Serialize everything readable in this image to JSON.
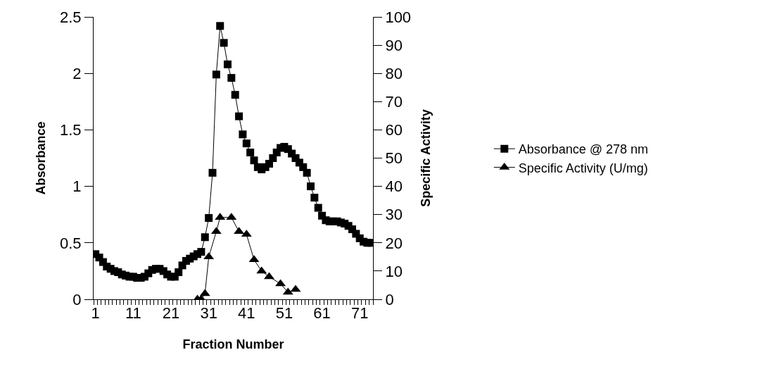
{
  "chart_data": {
    "type": "line",
    "xlabel": "Fraction Number",
    "ylabel": "Absorbance",
    "y2label": "Specific Activity",
    "categories": [
      "1",
      null,
      null,
      null,
      null,
      null,
      null,
      null,
      null,
      null,
      "11",
      null,
      null,
      null,
      null,
      null,
      null,
      null,
      null,
      null,
      "21",
      null,
      null,
      null,
      null,
      null,
      null,
      null,
      null,
      null,
      "31",
      null,
      null,
      null,
      null,
      null,
      null,
      null,
      null,
      null,
      "41",
      null,
      null,
      null,
      null,
      null,
      null,
      null,
      null,
      null,
      "51",
      null,
      null,
      null,
      null,
      null,
      null,
      null,
      null,
      null,
      "61",
      null,
      null,
      null,
      null,
      null,
      null,
      null,
      null,
      null,
      "71",
      null,
      null,
      null
    ],
    "series": [
      {
        "name": "Absorbance @ 278 nm",
        "color": "#000000",
        "marker": "square",
        "values": [
          0.4,
          0.37,
          0.33,
          0.29,
          0.27,
          0.25,
          0.24,
          0.22,
          0.21,
          0.2,
          0.2,
          0.19,
          0.19,
          0.2,
          0.23,
          0.26,
          0.27,
          0.27,
          0.25,
          0.22,
          0.2,
          0.2,
          0.24,
          0.3,
          0.34,
          0.36,
          0.38,
          0.4,
          0.42,
          0.55,
          0.72,
          1.12,
          1.99,
          2.42,
          2.27,
          2.08,
          1.96,
          1.81,
          1.62,
          1.46,
          1.38,
          1.3,
          1.23,
          1.17,
          1.15,
          1.17,
          1.2,
          1.25,
          1.3,
          1.34,
          1.35,
          1.33,
          1.29,
          1.25,
          1.21,
          1.17,
          1.12,
          1.0,
          0.9,
          0.81,
          0.74,
          0.7,
          0.69,
          0.69,
          0.69,
          0.68,
          0.67,
          0.65,
          0.62,
          0.58,
          0.54,
          0.51,
          0.5,
          0.5
        ]
      },
      {
        "name": "Specific Activity (U/mg)",
        "color": "#000000",
        "marker": "triangle",
        "axis": "y2",
        "values": [
          null,
          null,
          null,
          null,
          null,
          null,
          null,
          null,
          null,
          null,
          null,
          null,
          null,
          null,
          null,
          null,
          null,
          null,
          null,
          null,
          null,
          null,
          null,
          null,
          null,
          null,
          null,
          0,
          0,
          2,
          15,
          null,
          24,
          29,
          null,
          null,
          29,
          null,
          24,
          null,
          23,
          null,
          14,
          null,
          10,
          null,
          8,
          null,
          null,
          5.5,
          null,
          2.5,
          null,
          3.5,
          null,
          null,
          null,
          null,
          null,
          null,
          null,
          null,
          null,
          null,
          null,
          null,
          null,
          null,
          null,
          null,
          null,
          null,
          null,
          null
        ]
      }
    ],
    "ylim": [
      0,
      2.5
    ],
    "yticks": [
      0,
      0.5,
      1,
      1.5,
      2,
      2.5
    ],
    "y2lim": [
      0,
      100
    ],
    "y2ticks": [
      0,
      10,
      20,
      30,
      40,
      50,
      60,
      70,
      80,
      90,
      100
    ],
    "legend": "right",
    "line_style": "solid"
  }
}
